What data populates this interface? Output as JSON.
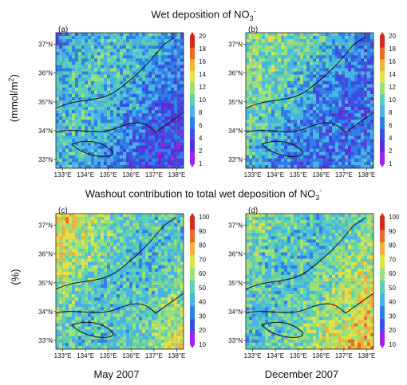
{
  "titles": {
    "top": "Wet deposition of NO",
    "top_sub": "3",
    "top_sup": "-",
    "bottom": "Washout contribution to total wet deposition of NO",
    "bottom_sub": "3",
    "bottom_sup": "-"
  },
  "ylabels": {
    "top": "(mmol/m",
    "top_sup": "2",
    "top_close": ")",
    "bottom": "(%)"
  },
  "columns": {
    "left": "May 2007",
    "right": "December 2007"
  },
  "chart_data": [
    {
      "type": "heatmap",
      "panel": "(a)",
      "xticks": [
        "133°E",
        "134°E",
        "135°E",
        "136°E",
        "137°E",
        "138°E"
      ],
      "yticks": [
        "33°N",
        "34°N",
        "35°N",
        "36°N",
        "37°N"
      ],
      "xlim": [
        132.7,
        138.3
      ],
      "ylim": [
        32.7,
        37.4
      ],
      "colorbar_ticks": [
        "1",
        "2",
        "4",
        "6",
        "8",
        "10",
        "12",
        "14",
        "16",
        "18",
        "20"
      ],
      "colorbar_colors": [
        "#a020f0",
        "#5a2fd8",
        "#3b4fe0",
        "#2f7fe8",
        "#46b4e6",
        "#5fd1b0",
        "#9be07a",
        "#e0e24a",
        "#f1b23a",
        "#ea6a2a",
        "#d42a1e"
      ],
      "dominant_level": 3
    },
    {
      "type": "heatmap",
      "panel": "(b)",
      "xticks": [
        "133°E",
        "134°E",
        "135°E",
        "136°E",
        "137°E",
        "138°E"
      ],
      "yticks": [
        "33°N",
        "34°N",
        "35°N",
        "36°N",
        "37°N"
      ],
      "xlim": [
        132.7,
        138.3
      ],
      "ylim": [
        32.7,
        37.4
      ],
      "colorbar_ticks": [
        "1",
        "2",
        "4",
        "6",
        "8",
        "10",
        "12",
        "14",
        "16",
        "18",
        "20"
      ],
      "colorbar_colors": [
        "#a020f0",
        "#5a2fd8",
        "#3b4fe0",
        "#2f7fe8",
        "#46b4e6",
        "#5fd1b0",
        "#9be07a",
        "#e0e24a",
        "#f1b23a",
        "#ea6a2a",
        "#d42a1e"
      ],
      "dominant_level": 4
    },
    {
      "type": "heatmap",
      "panel": "(c)",
      "xticks": [
        "133°E",
        "134°E",
        "135°E",
        "136°E",
        "137°E",
        "138°E"
      ],
      "yticks": [
        "33°N",
        "34°N",
        "35°N",
        "36°N",
        "37°N"
      ],
      "xlim": [
        132.7,
        138.3
      ],
      "ylim": [
        32.7,
        37.4
      ],
      "colorbar_ticks": [
        "10",
        "20",
        "30",
        "40",
        "50",
        "60",
        "70",
        "80",
        "90",
        "100"
      ],
      "colorbar_colors": [
        "#a020f0",
        "#3b4fe0",
        "#2f7fe8",
        "#46b4e6",
        "#5fd1b0",
        "#9be07a",
        "#e0e24a",
        "#f1b23a",
        "#ea6a2a",
        "#d42a1e"
      ],
      "dominant_level": 5
    },
    {
      "type": "heatmap",
      "panel": "(d)",
      "xticks": [
        "133°E",
        "134°E",
        "135°E",
        "136°E",
        "137°E",
        "138°E"
      ],
      "yticks": [
        "33°N",
        "34°N",
        "35°N",
        "36°N",
        "37°N"
      ],
      "xlim": [
        132.7,
        138.3
      ],
      "ylim": [
        32.7,
        37.4
      ],
      "colorbar_ticks": [
        "10",
        "20",
        "30",
        "40",
        "50",
        "60",
        "70",
        "80",
        "90",
        "100"
      ],
      "colorbar_colors": [
        "#a020f0",
        "#3b4fe0",
        "#2f7fe8",
        "#46b4e6",
        "#5fd1b0",
        "#9be07a",
        "#e0e24a",
        "#f1b23a",
        "#ea6a2a",
        "#d42a1e"
      ],
      "dominant_level": 5
    }
  ]
}
